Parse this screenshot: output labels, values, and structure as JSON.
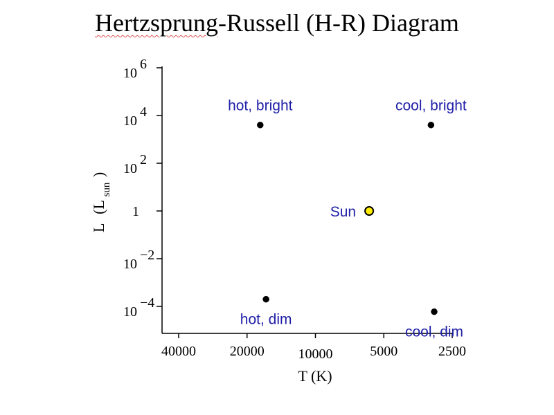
{
  "title_main": "Hertzsprung",
  "title_rest": "-Russell (H-R) Diagram",
  "chart_data": {
    "type": "scatter",
    "title": "Hertzsprung-Russell (H-R) Diagram",
    "xlabel": "T (K)",
    "ylabel_main": "L",
    "ylabel_open": "(L",
    "ylabel_sub": "sun",
    "ylabel_close": ")",
    "x_scale": "log",
    "x_reversed": true,
    "xlim": [
      50000,
      2500
    ],
    "y_scale": "log",
    "ylim": [
      1e-05,
      1000000.0
    ],
    "x_ticks": [
      {
        "value": 40000,
        "label": "40000"
      },
      {
        "value": 20000,
        "label": "20000"
      },
      {
        "value": 10000,
        "label": "10000"
      },
      {
        "value": 5000,
        "label": "5000"
      },
      {
        "value": 2500,
        "label": "2500"
      }
    ],
    "y_ticks": [
      {
        "value": 1000000,
        "base": "10",
        "exp": "6"
      },
      {
        "value": 10000,
        "base": "10",
        "exp": "4"
      },
      {
        "value": 100,
        "base": "10",
        "exp": "2"
      },
      {
        "value": 1,
        "base": "1",
        "exp": ""
      },
      {
        "value": 0.01,
        "base": "10",
        "exp": "−2"
      },
      {
        "value": 0.0001,
        "base": "10",
        "exp": "−4"
      }
    ],
    "points": [
      {
        "label": "hot, bright",
        "x": 17500,
        "y": 4000,
        "color": "#000000",
        "label_pos": "above"
      },
      {
        "label": "cool, bright",
        "x": 3100,
        "y": 4000,
        "color": "#000000",
        "label_pos": "above"
      },
      {
        "label": "Sun",
        "x": 5800,
        "y": 1,
        "color": "#ffee00",
        "label_pos": "left"
      },
      {
        "label": "hot, dim",
        "x": 16500,
        "y": 0.0002,
        "color": "#000000",
        "label_pos": "below"
      },
      {
        "label": "cool, dim",
        "x": 3000,
        "y": 6e-05,
        "color": "#000000",
        "label_pos": "below"
      }
    ],
    "label_color": "#1f1fa8",
    "grid": false,
    "legend": "none"
  }
}
